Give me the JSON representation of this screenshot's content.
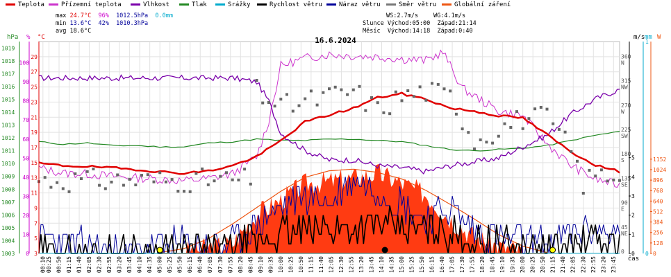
{
  "legend": [
    {
      "label": "Teplota",
      "color": "#e00000"
    },
    {
      "label": "Přízemní teplota",
      "color": "#cc33cc"
    },
    {
      "label": "Vlhkost",
      "color": "#7a00aa"
    },
    {
      "label": "Tlak",
      "color": "#228822"
    },
    {
      "label": "Srážky",
      "color": "#00aacc"
    },
    {
      "label": "Rychlost větru",
      "color": "#000000"
    },
    {
      "label": "Náraz větru",
      "color": "#000099"
    },
    {
      "label": "Směr větru",
      "color": "#777777"
    },
    {
      "label": "Globální záření",
      "color": "#ee5511"
    }
  ],
  "stats": {
    "max_label": "max",
    "max_temp": "24.7°C",
    "max_hum": "96%",
    "max_press": "1012.5hPa",
    "max_rain": "0.0mm",
    "min_label": "min",
    "min_temp": "13.6°C",
    "min_hum": "42%",
    "min_press": "1010.3hPa",
    "avg_label": "avg",
    "avg_temp": "18.6°C",
    "ws": "WS:2.7m/s",
    "wg": "WG:4.1m/s",
    "sun": "Slunce Východ:05:00  Západ:21:14",
    "moon": "Měsíc  Východ:14:18  Západ:0:40"
  },
  "chart_data": {
    "type": "line",
    "title": "16.6.2024",
    "xlabel": "čas",
    "left_axes": {
      "pressure": {
        "unit": "hPa",
        "ticks": [
          "1003",
          "1004",
          "1005",
          "1006",
          "1007",
          "1008",
          "1009",
          "1010",
          "1011",
          "1012",
          "1013",
          "1014",
          "1015",
          "1016",
          "1017",
          "1018",
          "1019"
        ],
        "color": "#228822"
      },
      "humidity": {
        "unit": "%",
        "ticks": [
          "0",
          "10",
          "20",
          "30",
          "40",
          "50",
          "60",
          "70",
          "80",
          "90",
          "100"
        ],
        "color": "#cc00cc"
      },
      "temperature": {
        "unit": "°C",
        "ticks": [
          "3",
          "5",
          "7",
          "9",
          "11",
          "13",
          "15",
          "17",
          "19",
          "21",
          "23",
          "25",
          "27",
          "29"
        ],
        "color": "#e00000"
      }
    },
    "right_axes": {
      "direction": {
        "ticks": [
          "0",
          "45",
          "90",
          "135",
          "180",
          "225",
          "270",
          "315",
          "360"
        ],
        "labels": [
          "",
          "NE",
          "E",
          "SE",
          "S",
          "SW",
          "W",
          "NW",
          "N"
        ]
      },
      "wind": {
        "unit": "m/s",
        "ticks": [
          "0",
          "1",
          "2",
          "3",
          "4",
          "5"
        ]
      },
      "rain": {
        "unit": "mm",
        "ticks": [
          "0",
          "1"
        ]
      },
      "radiation": {
        "unit": "W",
        "ticks": [
          "0",
          "128",
          "256",
          "384",
          "512",
          "640",
          "768",
          "896",
          "1024",
          "1152"
        ]
      }
    },
    "x_ticks": [
      "00:10",
      "00:25",
      "00:50",
      "01:15",
      "01:40",
      "02:05",
      "02:30",
      "02:55",
      "03:20",
      "03:45",
      "04:10",
      "04:35",
      "05:00",
      "05:25",
      "05:50",
      "06:15",
      "06:40",
      "07:05",
      "07:30",
      "07:55",
      "08:20",
      "08:45",
      "09:10",
      "09:35",
      "10:00",
      "10:25",
      "10:50",
      "11:15",
      "11:40",
      "12:05",
      "12:30",
      "12:55",
      "13:20",
      "13:45",
      "14:10",
      "14:35",
      "15:00",
      "15:25",
      "15:50",
      "16:15",
      "16:40",
      "17:05",
      "17:30",
      "17:55",
      "18:20",
      "18:45",
      "19:10",
      "19:35",
      "20:00",
      "20:25",
      "20:50",
      "21:15",
      "21:40",
      "22:05",
      "22:30",
      "22:55",
      "23:20",
      "23:45"
    ],
    "series": [
      {
        "name": "Teplota",
        "unit": "°C",
        "hours": [
          0,
          1,
          2,
          3,
          4,
          5,
          6,
          7,
          8,
          9,
          10,
          11,
          12,
          13,
          14,
          15,
          16,
          17,
          18,
          19,
          20,
          21,
          22,
          23,
          24
        ],
        "values": [
          14.9,
          14.6,
          14.5,
          14.3,
          14.1,
          13.8,
          13.6,
          13.9,
          14.6,
          15.8,
          17.9,
          20.4,
          21.3,
          22.2,
          23.6,
          24.1,
          23.4,
          22.2,
          21.8,
          21.2,
          20.9,
          18.7,
          16.4,
          14.7,
          13.8
        ]
      },
      {
        "name": "Přízemní teplota",
        "unit": "°C",
        "hours": [
          0,
          1,
          2,
          3,
          4,
          5,
          6,
          7,
          8,
          9,
          9.5,
          10,
          11,
          12,
          13,
          14,
          15,
          16,
          16.7,
          17.5,
          18,
          19,
          20,
          21,
          22,
          23,
          24
        ],
        "values": [
          14.3,
          13.6,
          13.5,
          13.2,
          13.0,
          12.8,
          12.6,
          12.9,
          13.5,
          15.8,
          20.5,
          27.8,
          28.8,
          29.3,
          29.1,
          29.0,
          28.7,
          28.5,
          29.6,
          24.8,
          23.8,
          21.8,
          21.2,
          17.5,
          14.6,
          12.8,
          12.0
        ]
      },
      {
        "name": "Vlhkost",
        "unit": "%",
        "hours": [
          0,
          1,
          2,
          3,
          4,
          5,
          6,
          7,
          8,
          9,
          9.5,
          10,
          11,
          12,
          13,
          14,
          15,
          16,
          17,
          18,
          19,
          20,
          21,
          22,
          23,
          24
        ],
        "values": [
          92,
          92,
          92,
          92,
          92,
          92,
          92,
          92,
          92,
          90,
          80,
          63,
          54,
          49,
          49,
          46,
          45,
          43,
          46,
          48,
          50,
          56,
          62,
          73,
          81,
          86
        ]
      },
      {
        "name": "Tlak",
        "unit": "hPa",
        "hours": [
          0,
          1,
          2,
          3,
          4,
          5,
          6,
          7,
          8,
          9,
          10,
          11,
          12,
          13,
          14,
          15,
          16,
          17,
          18,
          19,
          20,
          21,
          22,
          23,
          24
        ],
        "values": [
          1011.7,
          1011.5,
          1011.6,
          1011.4,
          1011.4,
          1011.3,
          1011.3,
          1011.6,
          1011.7,
          1011.9,
          1011.8,
          1011.8,
          1011.9,
          1011.9,
          1011.8,
          1011.7,
          1011.4,
          1011.1,
          1011.0,
          1011.1,
          1011.2,
          1011.4,
          1011.8,
          1012.2,
          1012.5
        ]
      },
      {
        "name": "Srážky",
        "unit": "mm",
        "hours": [
          0,
          24
        ],
        "values": [
          0.0,
          0.0
        ]
      },
      {
        "name": "Rychlost větru",
        "unit": "m/s",
        "hours": [
          0,
          1,
          2,
          3,
          4,
          5,
          6,
          7,
          8,
          9,
          10,
          11,
          12,
          13,
          14,
          15,
          16,
          17,
          18,
          19,
          20,
          21,
          22,
          23,
          24
        ],
        "values": [
          0,
          0,
          0,
          0,
          0,
          0,
          0.1,
          0.2,
          0.3,
          0.6,
          1.1,
          1.2,
          1.3,
          1.4,
          1.5,
          1.3,
          1.2,
          1.0,
          0.6,
          0.5,
          0.3,
          0.2,
          0.4,
          0.6,
          0.5
        ]
      },
      {
        "name": "Náraz větru",
        "unit": "m/s",
        "hours": [
          0,
          1,
          2,
          3,
          4,
          5,
          6,
          7,
          8,
          9,
          10,
          11,
          12,
          13,
          14,
          15,
          16,
          17,
          18,
          19,
          20,
          21,
          22,
          23,
          24
        ],
        "values": [
          0.9,
          0.5,
          0.4,
          0,
          0,
          0.4,
          0.5,
          0.4,
          0.5,
          1.5,
          2.4,
          3.1,
          2.6,
          3.9,
          3.3,
          2.6,
          1.8,
          2.3,
          1.2,
          0.9,
          0.6,
          0.5,
          1.1,
          1.3,
          0.9
        ]
      },
      {
        "name": "Směr větru",
        "unit": "°",
        "hours": [
          0,
          8.8,
          9,
          10,
          11,
          12,
          13,
          14,
          15,
          16,
          17,
          18,
          19,
          20,
          21,
          22,
          22.5,
          23,
          24
        ],
        "values": [
          135,
          135,
          300,
          270,
          280,
          290,
          300,
          265,
          290,
          300,
          290,
          210,
          230,
          250,
          250,
          190,
          130,
          145,
          145
        ]
      },
      {
        "name": "Globální záření",
        "unit": "W",
        "hours": [
          5,
          6,
          7,
          8,
          9,
          10,
          11,
          12,
          13,
          14,
          15,
          16,
          17,
          18,
          19,
          20,
          21
        ],
        "values": [
          10,
          60,
          180,
          360,
          560,
          760,
          930,
          1010,
          1030,
          990,
          910,
          770,
          600,
          420,
          230,
          90,
          10
        ]
      }
    ],
    "markers": [
      {
        "name": "sunrise",
        "time": "05:00",
        "color": "#ffff00"
      },
      {
        "name": "sunset",
        "time": "21:14",
        "color": "#ffff00"
      },
      {
        "name": "moonrise",
        "time": "14:18",
        "color": "#000000"
      }
    ]
  }
}
